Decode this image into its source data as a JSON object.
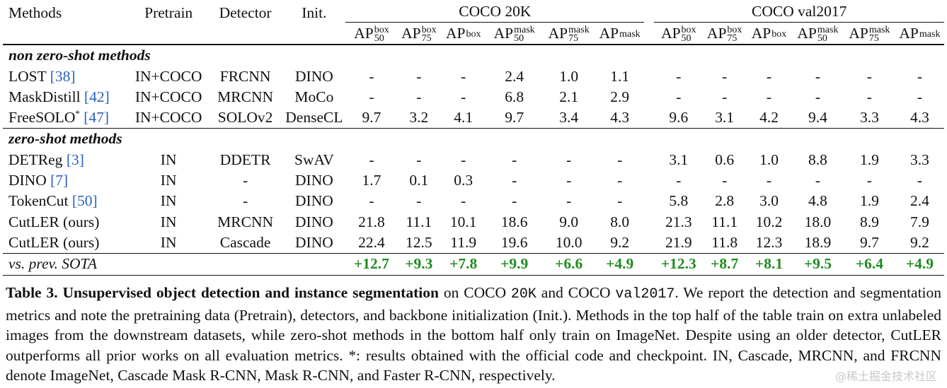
{
  "header": {
    "methods": "Methods",
    "pretrain": "Pretrain",
    "detector": "Detector",
    "init": "Init.",
    "group1": "COCO 20K",
    "group2": "COCO val2017",
    "metrics": [
      {
        "base": "AP",
        "sup": "box",
        "sub": "50"
      },
      {
        "base": "AP",
        "sup": "box",
        "sub": "75"
      },
      {
        "base": "AP",
        "sup": "box",
        "sub": ""
      },
      {
        "base": "AP",
        "sup": "mask",
        "sub": "50"
      },
      {
        "base": "AP",
        "sup": "mask",
        "sub": "75"
      },
      {
        "base": "AP",
        "sup": "mask",
        "sub": ""
      }
    ]
  },
  "sections": {
    "non_zero_shot": "non zero-shot methods",
    "zero_shot": "zero-shot methods"
  },
  "rows": [
    {
      "name": "LOST",
      "cite": "[38]",
      "star": "",
      "pretrain": "IN+COCO",
      "detector": "FRCNN",
      "init": "DINO",
      "vals": [
        "-",
        "-",
        "-",
        "2.4",
        "1.0",
        "1.1",
        "-",
        "-",
        "-",
        "-",
        "-",
        "-"
      ]
    },
    {
      "name": "MaskDistill",
      "cite": "[42]",
      "star": "",
      "pretrain": "IN+COCO",
      "detector": "MRCNN",
      "init": "MoCo",
      "vals": [
        "-",
        "-",
        "-",
        "6.8",
        "2.1",
        "2.9",
        "-",
        "-",
        "-",
        "-",
        "-",
        "-"
      ]
    },
    {
      "name": "FreeSOLO",
      "cite": "[47]",
      "star": "*",
      "pretrain": "IN+COCO",
      "detector": "SOLOv2",
      "init": "DenseCL",
      "vals": [
        "9.7",
        "3.2",
        "4.1",
        "9.7",
        "3.4",
        "4.3",
        "9.6",
        "3.1",
        "4.2",
        "9.4",
        "3.3",
        "4.3"
      ]
    },
    {
      "name": "DETReg",
      "cite": "[3]",
      "star": "",
      "pretrain": "IN",
      "detector": "DDETR",
      "init": "SwAV",
      "vals": [
        "-",
        "-",
        "-",
        "-",
        "-",
        "-",
        "3.1",
        "0.6",
        "1.0",
        "8.8",
        "1.9",
        "3.3"
      ]
    },
    {
      "name": "DINO",
      "cite": "[7]",
      "star": "",
      "pretrain": "IN",
      "detector": "-",
      "init": "DINO",
      "vals": [
        "1.7",
        "0.1",
        "0.3",
        "-",
        "-",
        "-",
        "-",
        "-",
        "-",
        "-",
        "-",
        "-"
      ]
    },
    {
      "name": "TokenCut",
      "cite": "[50]",
      "star": "",
      "pretrain": "IN",
      "detector": "-",
      "init": "DINO",
      "vals": [
        "-",
        "-",
        "-",
        "-",
        "-",
        "-",
        "5.8",
        "2.8",
        "3.0",
        "4.8",
        "1.9",
        "2.4"
      ]
    },
    {
      "name": "CutLER (ours)",
      "cite": "",
      "star": "",
      "pretrain": "IN",
      "detector": "MRCNN",
      "init": "DINO",
      "vals": [
        "21.8",
        "11.1",
        "10.1",
        "18.6",
        "9.0",
        "8.0",
        "21.3",
        "11.1",
        "10.2",
        "18.0",
        "8.9",
        "7.9"
      ]
    },
    {
      "name": "CutLER (ours)",
      "cite": "",
      "star": "",
      "pretrain": "IN",
      "detector": "Cascade",
      "init": "DINO",
      "vals": [
        "22.4",
        "12.5",
        "11.9",
        "19.6",
        "10.0",
        "9.2",
        "21.9",
        "11.8",
        "12.3",
        "18.9",
        "9.7",
        "9.2"
      ]
    }
  ],
  "sota": {
    "label": "vs. prev. SOTA",
    "vals": [
      "+12.7",
      "+9.3",
      "+7.8",
      "+9.9",
      "+6.6",
      "+4.9",
      "+12.3",
      "+8.7",
      "+8.1",
      "+9.5",
      "+6.4",
      "+4.9"
    ],
    "color": "#1e8c1e"
  },
  "caption": {
    "lead": "Table 3.",
    "bold_title": "Unsupervised object detection and instance segmentation",
    "t1": " on COCO ",
    "m1": "20K",
    "t2": " and COCO ",
    "m2": "val2017",
    "t3": ". We report the detection and segmentation metrics and note the pretraining data (Pretrain), detectors, and backbone initialization (Init.). Methods in the top half of the table train on extra unlabeled images from the downstream datasets, while zero-shot methods in the bottom half only train on ImageNet. Despite using an older detector, CutLER outperforms all prior works on all evaluation metrics. *: results obtained with the official code and checkpoint. IN, Cascade, MRCNN, and FRCNN denote ImageNet, Cascade Mask R-CNN, Mask R-CNN, and Faster R-CNN, respectively."
  },
  "watermark": "@稀土掘金技术社区",
  "cite_color": "#2a62b8"
}
